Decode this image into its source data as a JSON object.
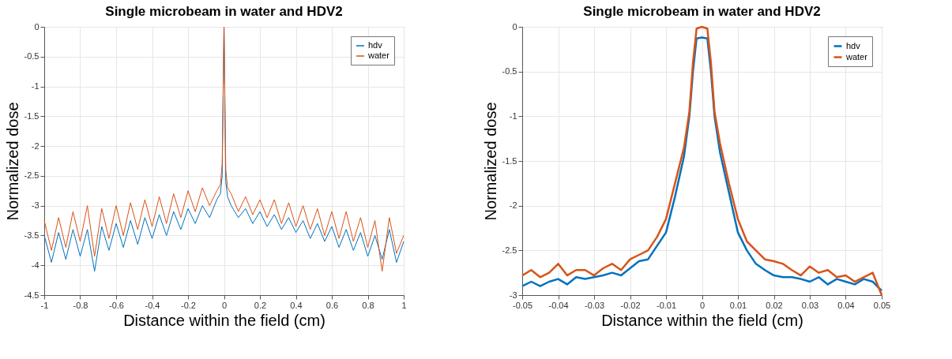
{
  "chart_data": [
    {
      "type": "line",
      "title": "Single microbeam in water and HDV2",
      "xlabel": "Distance within the field (cm)",
      "ylabel": "Normalized dose",
      "x": [
        -1,
        -0.96,
        -0.92,
        -0.88,
        -0.84,
        -0.8,
        -0.76,
        -0.72,
        -0.68,
        -0.64,
        -0.6,
        -0.56,
        -0.52,
        -0.48,
        -0.44,
        -0.4,
        -0.36,
        -0.32,
        -0.28,
        -0.24,
        -0.2,
        -0.16,
        -0.12,
        -0.08,
        -0.04,
        -0.02,
        -0.01,
        0,
        0.01,
        0.02,
        0.04,
        0.08,
        0.12,
        0.16,
        0.2,
        0.24,
        0.28,
        0.32,
        0.36,
        0.4,
        0.44,
        0.48,
        0.52,
        0.56,
        0.6,
        0.64,
        0.68,
        0.72,
        0.76,
        0.8,
        0.84,
        0.88,
        0.92,
        0.96,
        1
      ],
      "series": [
        {
          "name": "hdv",
          "color": "#0072bd",
          "values": [
            -3.5,
            -3.95,
            -3.45,
            -3.9,
            -3.4,
            -3.85,
            -3.4,
            -4.1,
            -3.35,
            -3.75,
            -3.3,
            -3.7,
            -3.25,
            -3.65,
            -3.2,
            -3.55,
            -3.15,
            -3.5,
            -3.1,
            -3.4,
            -3.05,
            -3.3,
            -3.0,
            -3.2,
            -2.9,
            -2.8,
            -2.5,
            0,
            -2.6,
            -2.85,
            -3.0,
            -3.2,
            -3.05,
            -3.3,
            -3.1,
            -3.35,
            -3.15,
            -3.4,
            -3.2,
            -3.45,
            -3.25,
            -3.55,
            -3.3,
            -3.6,
            -3.35,
            -3.7,
            -3.4,
            -3.75,
            -3.45,
            -3.85,
            -3.5,
            -3.9,
            -3.4,
            -3.95,
            -3.6
          ]
        },
        {
          "name": "water",
          "color": "#d95319",
          "values": [
            -3.25,
            -3.75,
            -3.2,
            -3.7,
            -3.1,
            -3.6,
            -3.0,
            -3.85,
            -3.05,
            -3.55,
            -3.0,
            -3.5,
            -2.95,
            -3.4,
            -2.9,
            -3.35,
            -2.85,
            -3.3,
            -2.8,
            -3.2,
            -2.75,
            -3.1,
            -2.7,
            -3.0,
            -2.75,
            -2.65,
            -2.3,
            0,
            -2.4,
            -2.7,
            -2.8,
            -3.1,
            -2.85,
            -3.15,
            -2.9,
            -3.2,
            -2.9,
            -3.3,
            -2.95,
            -3.35,
            -3.0,
            -3.4,
            -3.05,
            -3.5,
            -3.1,
            -3.55,
            -3.1,
            -3.6,
            -3.2,
            -3.7,
            -3.25,
            -4.1,
            -3.2,
            -3.8,
            -3.5
          ]
        }
      ],
      "xlim": [
        -1,
        1
      ],
      "xticks": [
        -1,
        -0.8,
        -0.6,
        -0.4,
        -0.2,
        0,
        0.2,
        0.4,
        0.6,
        0.8,
        1
      ],
      "ylim": [
        -4.5,
        0
      ],
      "yticks": [
        -4.5,
        -4,
        -3.5,
        -3,
        -2.5,
        -2,
        -1.5,
        -1,
        -0.5,
        0
      ],
      "grid": true,
      "legend": "top right",
      "line_style": "solid",
      "marker": "none"
    },
    {
      "type": "line",
      "title": "Single microbeam in water and HDV2",
      "xlabel": "Distance within the field (cm)",
      "ylabel": "Normalized dose",
      "x": [
        -0.05,
        -0.0475,
        -0.045,
        -0.0425,
        -0.04,
        -0.0375,
        -0.035,
        -0.0325,
        -0.03,
        -0.0275,
        -0.025,
        -0.0225,
        -0.02,
        -0.0175,
        -0.015,
        -0.0125,
        -0.01,
        -0.0075,
        -0.005,
        -0.0035,
        -0.0025,
        -0.0015,
        0,
        0.0015,
        0.0025,
        0.0035,
        0.005,
        0.0075,
        0.01,
        0.0125,
        0.015,
        0.0175,
        0.02,
        0.0225,
        0.025,
        0.0275,
        0.03,
        0.0325,
        0.035,
        0.0375,
        0.04,
        0.0425,
        0.045,
        0.0475,
        0.05
      ],
      "series": [
        {
          "name": "hdv",
          "color": "#0072bd",
          "values": [
            -2.9,
            -2.85,
            -2.9,
            -2.85,
            -2.82,
            -2.88,
            -2.8,
            -2.82,
            -2.8,
            -2.78,
            -2.75,
            -2.78,
            -2.7,
            -2.62,
            -2.6,
            -2.45,
            -2.3,
            -1.9,
            -1.45,
            -1.0,
            -0.5,
            -0.13,
            -0.12,
            -0.13,
            -0.5,
            -1.0,
            -1.4,
            -1.85,
            -2.3,
            -2.5,
            -2.65,
            -2.72,
            -2.78,
            -2.8,
            -2.8,
            -2.82,
            -2.85,
            -2.8,
            -2.88,
            -2.82,
            -2.85,
            -2.88,
            -2.82,
            -2.85,
            -2.95
          ]
        },
        {
          "name": "water",
          "color": "#d95319",
          "values": [
            -2.78,
            -2.72,
            -2.8,
            -2.75,
            -2.65,
            -2.78,
            -2.72,
            -2.72,
            -2.78,
            -2.7,
            -2.65,
            -2.72,
            -2.6,
            -2.55,
            -2.5,
            -2.35,
            -2.15,
            -1.75,
            -1.35,
            -0.95,
            -0.4,
            -0.02,
            0,
            -0.02,
            -0.4,
            -0.95,
            -1.3,
            -1.75,
            -2.15,
            -2.4,
            -2.5,
            -2.6,
            -2.62,
            -2.65,
            -2.72,
            -2.78,
            -2.68,
            -2.75,
            -2.72,
            -2.8,
            -2.78,
            -2.85,
            -2.8,
            -2.75,
            -3.0
          ]
        }
      ],
      "xlim": [
        -0.05,
        0.05
      ],
      "xticks": [
        -0.05,
        -0.04,
        -0.03,
        -0.02,
        -0.01,
        0,
        0.01,
        0.02,
        0.03,
        0.04,
        0.05
      ],
      "ylim": [
        -3,
        0
      ],
      "yticks": [
        -3,
        -2.5,
        -2,
        -1.5,
        -1,
        -0.5,
        0
      ],
      "grid": true,
      "legend": "top right",
      "line_style": "solid",
      "marker": "none"
    }
  ]
}
